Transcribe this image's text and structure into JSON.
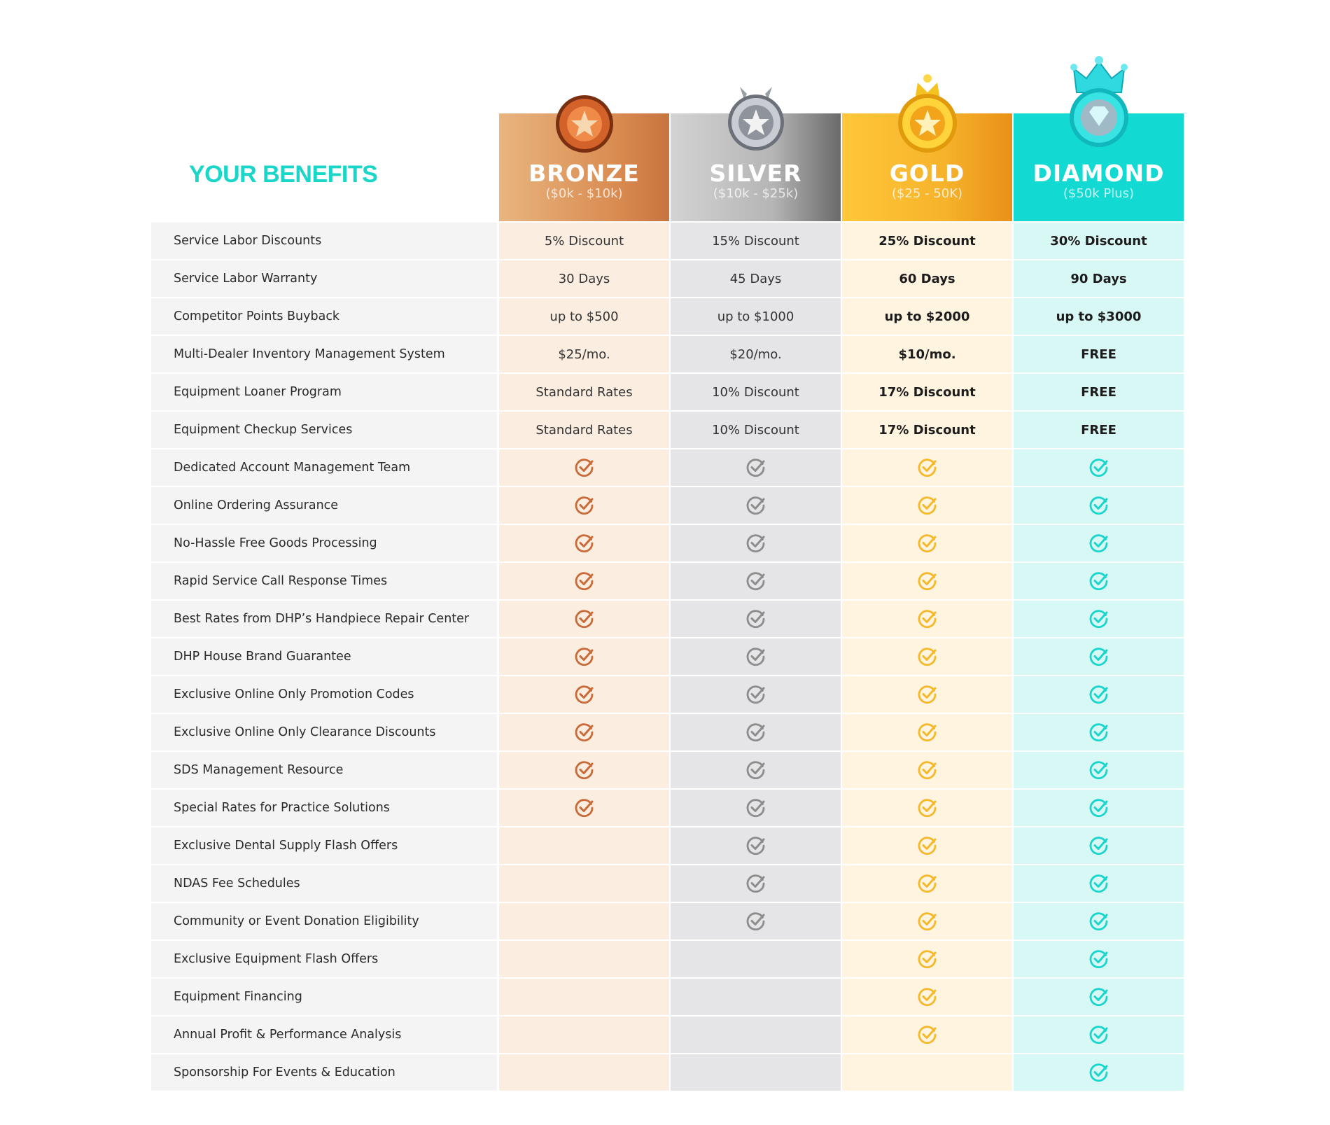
{
  "title": "YOUR BENEFITS",
  "tiers": [
    {
      "key": "bronze",
      "name": "BRONZE",
      "range": "($0k - $10k)",
      "color": "#c8733e"
    },
    {
      "key": "silver",
      "name": "SILVER",
      "range": "($10k - $25k)",
      "color": "#8e8e8e"
    },
    {
      "key": "gold",
      "name": "GOLD",
      "range": "($25 - 50K)",
      "color": "#f6b32b"
    },
    {
      "key": "diamond",
      "name": "DIAMOND",
      "range": "($50k Plus)",
      "color": "#12d9d2"
    }
  ],
  "check_colors": {
    "bronze": "#c96a38",
    "silver": "#8c8c8c",
    "gold": "#f5b82a",
    "diamond": "#18d6cc"
  },
  "rows": [
    {
      "label": "Service Labor Discounts",
      "values": [
        "5% Discount",
        "15% Discount",
        "25% Discount",
        "30% Discount"
      ]
    },
    {
      "label": "Service Labor Warranty",
      "values": [
        "30 Days",
        "45 Days",
        "60 Days",
        "90 Days"
      ]
    },
    {
      "label": "Competitor Points Buyback",
      "values": [
        "up to $500",
        "up to $1000",
        "up to $2000",
        "up to $3000"
      ]
    },
    {
      "label": "Multi-Dealer Inventory Management System",
      "values": [
        "$25/mo.",
        "$20/mo.",
        "$10/mo.",
        "FREE"
      ]
    },
    {
      "label": "Equipment Loaner Program",
      "values": [
        "Standard Rates",
        "10% Discount",
        "17% Discount",
        "FREE"
      ]
    },
    {
      "label": "Equipment Checkup Services",
      "values": [
        "Standard Rates",
        "10% Discount",
        "17% Discount",
        "FREE"
      ]
    },
    {
      "label": "Dedicated Account Management Team",
      "values": [
        true,
        true,
        true,
        true
      ]
    },
    {
      "label": "Online Ordering Assurance",
      "values": [
        true,
        true,
        true,
        true
      ]
    },
    {
      "label": "No-Hassle Free Goods Processing",
      "values": [
        true,
        true,
        true,
        true
      ]
    },
    {
      "label": "Rapid Service Call Response Times",
      "values": [
        true,
        true,
        true,
        true
      ]
    },
    {
      "label": "Best Rates from DHP’s Handpiece Repair Center",
      "values": [
        true,
        true,
        true,
        true
      ]
    },
    {
      "label": "DHP House Brand Guarantee",
      "values": [
        true,
        true,
        true,
        true
      ]
    },
    {
      "label": "Exclusive Online Only Promotion Codes",
      "values": [
        true,
        true,
        true,
        true
      ]
    },
    {
      "label": "Exclusive Online Only Clearance Discounts",
      "values": [
        true,
        true,
        true,
        true
      ]
    },
    {
      "label": "SDS Management Resource",
      "values": [
        true,
        true,
        true,
        true
      ]
    },
    {
      "label": "Special Rates for Practice Solutions",
      "values": [
        true,
        true,
        true,
        true
      ]
    },
    {
      "label": "Exclusive Dental Supply Flash Offers",
      "values": [
        false,
        true,
        true,
        true
      ]
    },
    {
      "label": "NDAS Fee Schedules",
      "values": [
        false,
        true,
        true,
        true
      ]
    },
    {
      "label": "Community or Event Donation Eligibility",
      "values": [
        false,
        true,
        true,
        true
      ]
    },
    {
      "label": "Exclusive Equipment Flash Offers",
      "values": [
        false,
        false,
        true,
        true
      ]
    },
    {
      "label": "Equipment Financing",
      "values": [
        false,
        false,
        true,
        true
      ]
    },
    {
      "label": "Annual Profit & Performance Analysis",
      "values": [
        false,
        false,
        true,
        true
      ]
    },
    {
      "label": "Sponsorship For Events & Education",
      "values": [
        false,
        false,
        false,
        true
      ]
    }
  ]
}
